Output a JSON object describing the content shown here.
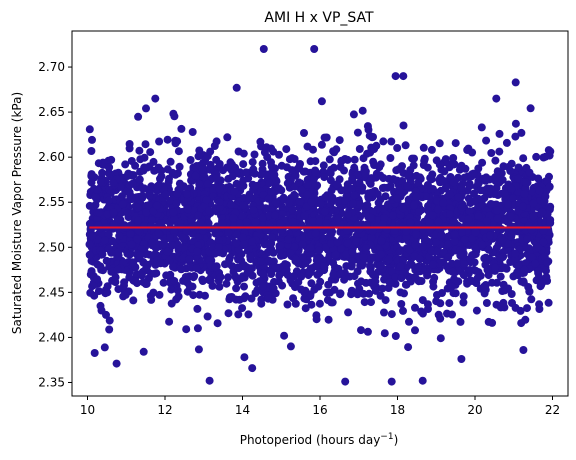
{
  "chart_data": {
    "type": "scatter",
    "title": "AMI H x VP_SAT",
    "xlabel": "Photoperiod (hours day",
    "xlabel_sup": "−1",
    "xlabel_end": ")",
    "ylabel": "Saturated Moisture Vapor Pressure (kPa)",
    "xlim": [
      9.6,
      22.4
    ],
    "ylim": [
      2.335,
      2.74
    ],
    "xticks": [
      10,
      12,
      14,
      16,
      18,
      20,
      22
    ],
    "yticks": [
      2.35,
      2.4,
      2.45,
      2.5,
      2.55,
      2.6,
      2.65,
      2.7
    ],
    "ytick_labels": [
      "2.35",
      "2.40",
      "2.45",
      "2.50",
      "2.55",
      "2.60",
      "2.65",
      "2.70"
    ],
    "colors": {
      "points": "#26139a",
      "fit_line": "#e5132b"
    },
    "fit_line": {
      "x": [
        10.05,
        21.95
      ],
      "y": [
        2.522,
        2.522
      ]
    },
    "point_cloud": {
      "x_range": [
        10.05,
        21.95
      ],
      "y_center": 2.522,
      "y_sd": 0.04,
      "count": 3500
    },
    "outlier_points": [
      {
        "x": 14.55,
        "y": 2.72
      },
      {
        "x": 15.85,
        "y": 2.72
      },
      {
        "x": 17.95,
        "y": 2.69
      },
      {
        "x": 18.15,
        "y": 2.69
      },
      {
        "x": 21.05,
        "y": 2.683
      },
      {
        "x": 13.85,
        "y": 2.677
      },
      {
        "x": 16.05,
        "y": 2.662
      },
      {
        "x": 11.75,
        "y": 2.665
      },
      {
        "x": 20.55,
        "y": 2.665
      },
      {
        "x": 13.15,
        "y": 2.352
      },
      {
        "x": 16.65,
        "y": 2.351
      },
      {
        "x": 17.85,
        "y": 2.351
      },
      {
        "x": 18.65,
        "y": 2.352
      },
      {
        "x": 10.75,
        "y": 2.371
      },
      {
        "x": 14.25,
        "y": 2.366
      },
      {
        "x": 14.05,
        "y": 2.378
      },
      {
        "x": 21.25,
        "y": 2.386
      },
      {
        "x": 11.45,
        "y": 2.384
      },
      {
        "x": 19.65,
        "y": 2.376
      },
      {
        "x": 15.25,
        "y": 2.39
      }
    ]
  }
}
